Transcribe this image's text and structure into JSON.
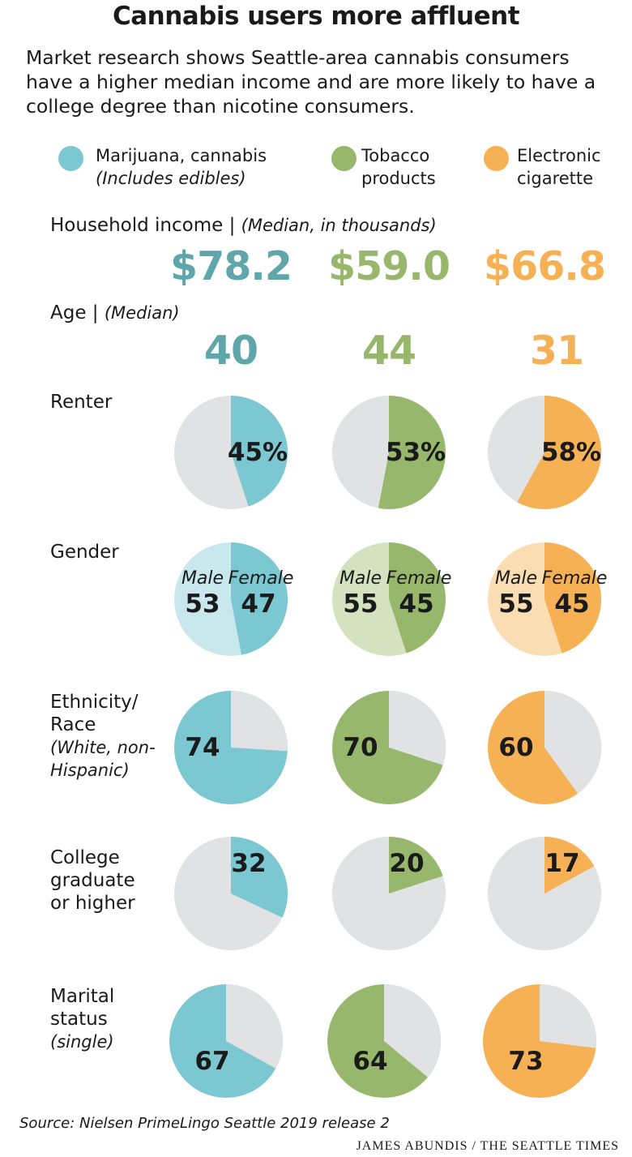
{
  "title": "Cannabis users more affluent",
  "subtitle": "Market research shows Seattle-area cannabis consumers have a higher median income and are more likely to have a college degree than nicotine consumers.",
  "legend": [
    {
      "label": "Marijuana, cannabis",
      "note": "(Includes edibles)",
      "color": "#7bc8d2"
    },
    {
      "label": "Tobacco",
      "label2": "products",
      "color": "#97b86c"
    },
    {
      "label": "Electronic",
      "label2": "cigarette",
      "color": "#f5b153"
    }
  ],
  "rows": {
    "income": {
      "label": "Household income |",
      "note": "(Median, in thousands)"
    },
    "age": {
      "label": "Age |",
      "note": "(Median)"
    },
    "renter": {
      "label": "Renter"
    },
    "gender": {
      "label": "Gender",
      "male_label": "Male",
      "female_label": "Female"
    },
    "ethnicity": {
      "line1": "Ethnicity/",
      "line2": "Race",
      "note1": "(White, non-",
      "note2": "Hispanic)"
    },
    "college": {
      "line1": "College",
      "line2": "graduate",
      "line3": "or higher"
    },
    "marital": {
      "line1": "Marital",
      "line2": "status",
      "note": "(single)"
    }
  },
  "chart_data": {
    "type": "pie",
    "categories": [
      "Marijuana, cannabis",
      "Tobacco products",
      "Electronic cigarette"
    ],
    "colors": [
      "#7bc8d2",
      "#97b86c",
      "#f5b153"
    ],
    "light_colors": [
      "#c9e8ee",
      "#d4e2c0",
      "#fbddb4"
    ],
    "neutral_color": "#e1e2e4",
    "income": {
      "values": [
        78.2,
        59.0,
        66.8
      ],
      "labels": [
        "$78.2",
        "$59.0",
        "$66.8"
      ],
      "unit": "thousands of dollars (median)"
    },
    "age": {
      "values": [
        40,
        44,
        31
      ],
      "labels": [
        "40",
        "44",
        "31"
      ]
    },
    "renter": {
      "values": [
        45,
        53,
        58
      ],
      "labels": [
        "45%",
        "53%",
        "58%"
      ]
    },
    "gender": {
      "male": [
        53,
        55,
        55
      ],
      "female": [
        47,
        45,
        45
      ]
    },
    "ethnicity": {
      "values": [
        74,
        70,
        60
      ],
      "labels": [
        "74",
        "70",
        "60"
      ]
    },
    "college": {
      "values": [
        32,
        20,
        17
      ],
      "labels": [
        "32",
        "20",
        "17"
      ]
    },
    "marital": {
      "values": [
        67,
        64,
        73
      ],
      "labels": [
        "67",
        "64",
        "73"
      ]
    }
  },
  "source": "Source: Nielsen PrimeLingo Seattle 2019 release 2",
  "credit": "JAMES ABUNDIS / THE SEATTLE TIMES"
}
